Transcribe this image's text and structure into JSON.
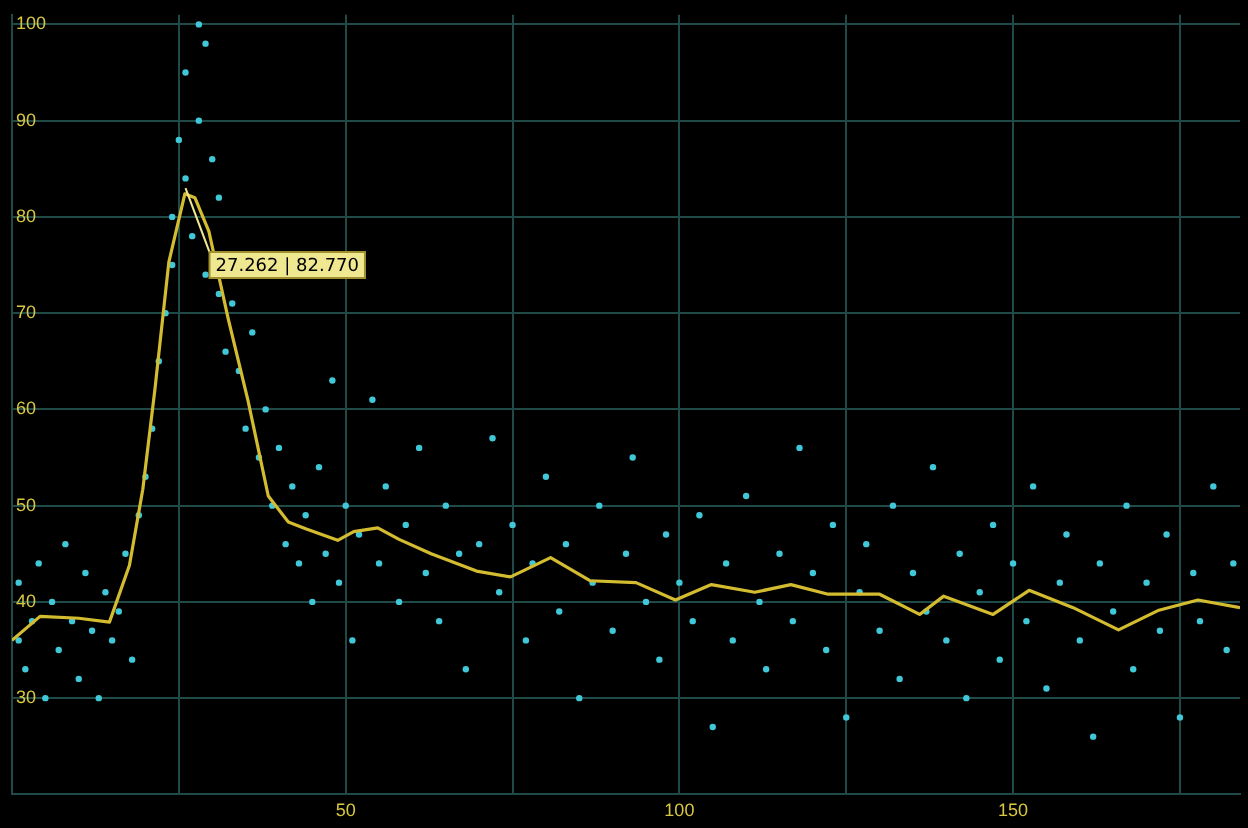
{
  "chart_data": {
    "type": "scatter",
    "xlim": [
      0,
      184
    ],
    "ylim": [
      20,
      101
    ],
    "xticks": [
      {
        "value": 25,
        "label": null
      },
      50,
      {
        "value": 75,
        "label": null
      },
      100,
      {
        "value": 125,
        "label": null
      },
      150,
      {
        "value": 175,
        "label": null
      }
    ],
    "yticks": [
      30,
      40,
      50,
      60,
      70,
      80,
      90,
      100
    ],
    "grid": true,
    "legend": false,
    "annotations": [
      {
        "text": "27.262 | 82.770",
        "x": 26,
        "y": 83
      }
    ],
    "series": [
      {
        "type": "scatter",
        "color": "#40c8d8",
        "marker": "circle",
        "x": [
          1,
          1,
          2,
          3,
          4,
          5,
          6,
          7,
          8,
          9,
          10,
          11,
          12,
          13,
          14,
          15,
          16,
          17,
          18,
          19,
          20,
          21,
          22,
          23,
          24,
          24,
          25,
          26,
          26,
          27,
          28,
          28,
          29,
          29,
          30,
          31,
          31,
          32,
          33,
          34,
          35,
          36,
          37,
          38,
          39,
          40,
          41,
          42,
          43,
          44,
          45,
          46,
          47,
          48,
          49,
          50,
          51,
          52,
          54,
          55,
          56,
          58,
          59,
          61,
          62,
          64,
          65,
          67,
          68,
          70,
          72,
          73,
          75,
          77,
          78,
          80,
          82,
          83,
          85,
          87,
          88,
          90,
          92,
          93,
          95,
          97,
          98,
          100,
          102,
          103,
          105,
          107,
          108,
          110,
          112,
          113,
          115,
          117,
          118,
          120,
          122,
          123,
          125,
          127,
          128,
          130,
          132,
          133,
          135,
          137,
          138,
          140,
          142,
          143,
          145,
          147,
          148,
          150,
          152,
          153,
          155,
          157,
          158,
          160,
          162,
          163,
          165,
          167,
          168,
          170,
          172,
          173,
          175,
          177,
          178,
          180,
          182,
          183
        ],
        "values": [
          36,
          42,
          33,
          38,
          44,
          30,
          40,
          35,
          46,
          38,
          32,
          43,
          37,
          30,
          41,
          36,
          39,
          45,
          34,
          49,
          53,
          58,
          65,
          70,
          75,
          80,
          88,
          95,
          84,
          78,
          100,
          90,
          98,
          74,
          86,
          72,
          82,
          66,
          71,
          64,
          58,
          68,
          55,
          60,
          50,
          56,
          46,
          52,
          44,
          49,
          40,
          54,
          45,
          63,
          42,
          50,
          36,
          47,
          61,
          44,
          52,
          40,
          48,
          56,
          43,
          38,
          50,
          45,
          33,
          46,
          57,
          41,
          48,
          36,
          44,
          53,
          39,
          46,
          30,
          42,
          50,
          37,
          45,
          55,
          40,
          34,
          47,
          42,
          38,
          49,
          27,
          44,
          36,
          51,
          40,
          33,
          45,
          38,
          56,
          43,
          35,
          48,
          28,
          41,
          46,
          37,
          50,
          32,
          43,
          39,
          54,
          36,
          45,
          30,
          41,
          48,
          34,
          44,
          38,
          52,
          31,
          42,
          47,
          36,
          26,
          44,
          39,
          50,
          33,
          42,
          37,
          47,
          28,
          43,
          38,
          52,
          35,
          44
        ]
      },
      {
        "type": "line",
        "color": "#d4bc30",
        "marker": "none",
        "line_style": "solid",
        "x": [
          0,
          4.2,
          10,
          14.6,
          17.6,
          19.6,
          21.4,
          23.5,
          25.9,
          27.4,
          29.5,
          32.4,
          35.4,
          38.4,
          41.4,
          44,
          48.8,
          51.2,
          54.8,
          58,
          62.8,
          69.6,
          74.7,
          80.7,
          86.6,
          93.5,
          99.4,
          104.8,
          111.3,
          116.7,
          122.3,
          130,
          136,
          139.6,
          147,
          152.4,
          159,
          165.8,
          171.7,
          177.7,
          184
        ],
        "values": [
          36,
          38.5,
          38.3,
          37.9,
          43.8,
          51.7,
          62,
          75.3,
          82.4,
          82,
          78.5,
          69.4,
          60.8,
          51,
          48.3,
          47.6,
          46.4,
          47.3,
          47.7,
          46.5,
          45,
          43.2,
          42.6,
          44.6,
          42.2,
          42,
          40.2,
          41.8,
          41,
          41.8,
          40.8,
          40.8,
          38.7,
          40.6,
          38.7,
          41.2,
          39.4,
          37.1,
          39.1,
          40.2,
          39.4
        ]
      }
    ]
  }
}
